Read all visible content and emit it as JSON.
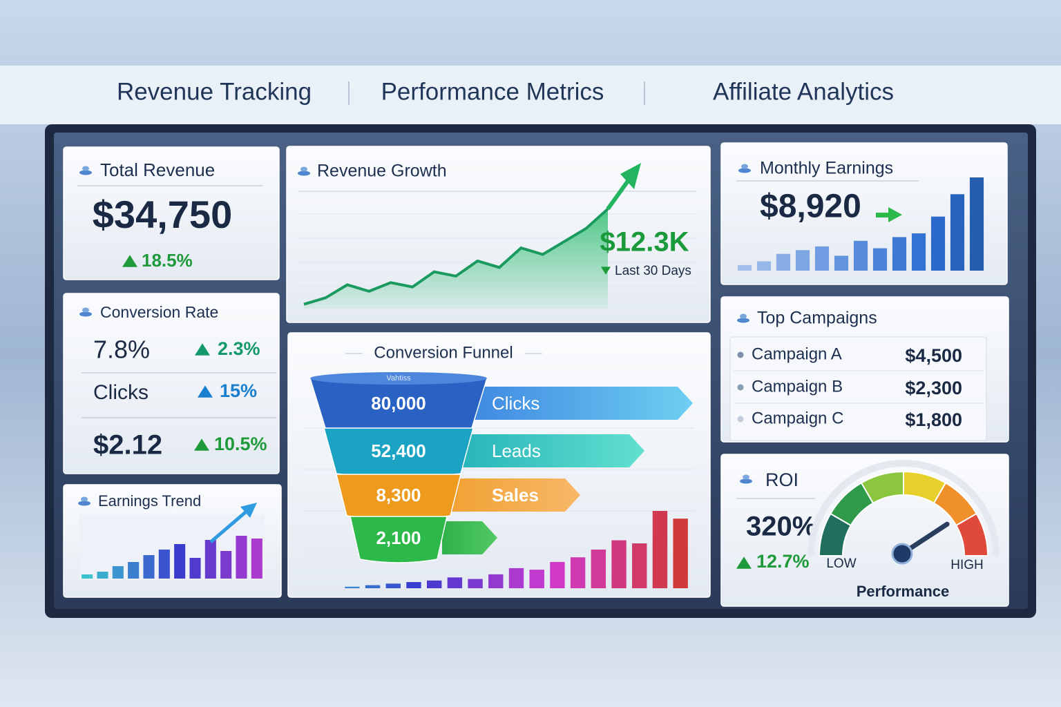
{
  "header": {
    "tabs": [
      "Revenue Tracking",
      "Performance Metrics",
      "Affiliate Analytics"
    ]
  },
  "total_revenue": {
    "title": "Total Revenue",
    "value": "$34,750",
    "change": "18.5%"
  },
  "conversion_rate": {
    "title": "Conversion Rate",
    "rows": [
      {
        "label": "7.8%",
        "change": "2.3%"
      },
      {
        "label": "Clicks",
        "change": "15%"
      },
      {
        "label": "$2.12",
        "change": "10.5%"
      }
    ]
  },
  "earnings_trend": {
    "title": "Earnings Trend",
    "bars": [
      6,
      10,
      18,
      24,
      34,
      42,
      50,
      30,
      56,
      40,
      62,
      58
    ]
  },
  "revenue_growth": {
    "title": "Revenue Growth",
    "value": "$12.3K",
    "period": "Last 30 Days",
    "line": [
      4,
      10,
      22,
      16,
      24,
      20,
      34,
      30,
      44,
      38,
      56,
      50,
      62,
      74,
      92
    ]
  },
  "conversion_funnel": {
    "title": "Conversion Funnel",
    "caption": "Vahtiss",
    "stages": [
      {
        "value": "80,000",
        "label": "Clicks"
      },
      {
        "value": "52,400",
        "label": "Leads"
      },
      {
        "value": "8,300",
        "label": "Sales"
      },
      {
        "value": "2,100",
        "label": ""
      }
    ],
    "bars": [
      2,
      4,
      6,
      8,
      10,
      14,
      12,
      18,
      26,
      24,
      34,
      40,
      50,
      62,
      58,
      100,
      90
    ]
  },
  "monthly_earnings": {
    "title": "Monthly Earnings",
    "value": "$8,920",
    "bars": [
      6,
      10,
      18,
      22,
      26,
      16,
      32,
      24,
      36,
      40,
      58,
      82,
      100
    ]
  },
  "top_campaigns": {
    "title": "Top Campaigns",
    "items": [
      {
        "name": "Campaign A",
        "value": "$4,500"
      },
      {
        "name": "Campaign B",
        "value": "$2,300"
      },
      {
        "name": "Campaign C",
        "value": "$1,800"
      }
    ]
  },
  "roi": {
    "title": "ROI",
    "value": "320%",
    "change": "12.7%",
    "low": "LOW",
    "high": "HIGH",
    "label": "Performance",
    "gauge": 0.8
  }
}
